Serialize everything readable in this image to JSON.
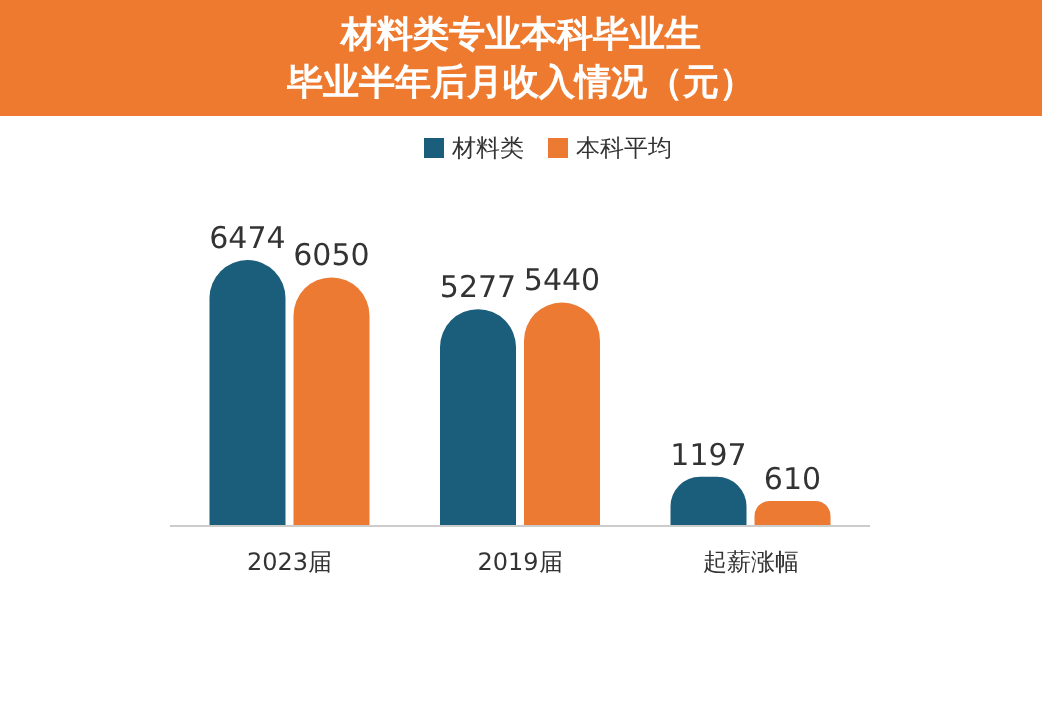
{
  "chart_data": {
    "type": "bar",
    "title": "材料类专业本科毕业生",
    "subtitle": "毕业半年后月收入情况（元）",
    "categories": [
      "2023届",
      "2019届",
      "起薪涨幅"
    ],
    "series": [
      {
        "name": "材料类",
        "color": "#1b5e7b",
        "values": [
          6474,
          5277,
          1197
        ]
      },
      {
        "name": "本科平均",
        "color": "#ec7a33",
        "values": [
          6050,
          5440,
          610
        ]
      }
    ],
    "data_labels": true,
    "legend": "top"
  }
}
